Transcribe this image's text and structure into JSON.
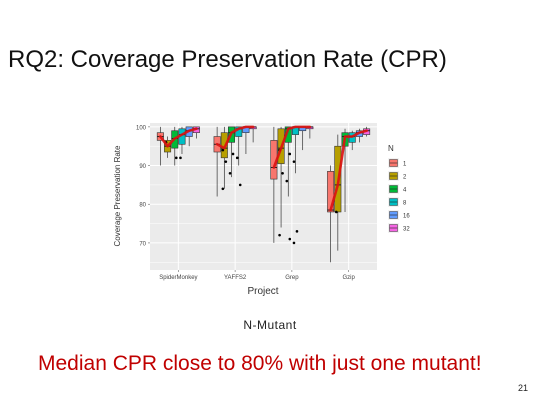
{
  "slide": {
    "title": "RQ2: Coverage Preservation Rate (CPR)",
    "caption": "N-Mutant",
    "note": "Median CPR close to 80% with just one mutant!",
    "page_number": "21"
  },
  "chart_data": {
    "type": "box",
    "title": "",
    "xlabel": "Project",
    "ylabel": "Coverage Preservation Rate",
    "categories": [
      "SpiderMonkey",
      "YAFFS2",
      "Grep",
      "Gzip"
    ],
    "yticks": [
      70,
      80,
      90,
      100
    ],
    "ylim": [
      63,
      101
    ],
    "grid": true,
    "background": "#ebebeb",
    "legend": {
      "title": "N",
      "position": "right"
    },
    "trend_color": "#dd1111",
    "series": [
      {
        "name": "1",
        "color": "#f8766d",
        "boxes": [
          {
            "min": 90,
            "q1": 96.5,
            "median": 97.5,
            "q3": 98.5,
            "max": 100
          },
          {
            "min": 82,
            "q1": 93.5,
            "median": 95.5,
            "q3": 97.5,
            "max": 100
          },
          {
            "min": 70,
            "q1": 86.5,
            "median": 89.5,
            "q3": 96.5,
            "max": 100
          },
          {
            "min": 65,
            "q1": 78,
            "median": 78.5,
            "q3": 88.5,
            "max": 90
          }
        ]
      },
      {
        "name": "2",
        "color": "#b79f00",
        "boxes": [
          {
            "min": 92,
            "q1": 93.5,
            "median": 95,
            "q3": 96.5,
            "max": 97.5
          },
          {
            "min": 84,
            "q1": 92,
            "median": 94.5,
            "q3": 98.5,
            "max": 100
          },
          {
            "min": 74,
            "q1": 90.5,
            "median": 94.5,
            "q3": 99.5,
            "max": 100
          },
          {
            "min": 68,
            "q1": 78,
            "median": 85,
            "q3": 95,
            "max": 98
          }
        ]
      },
      {
        "name": "4",
        "color": "#00ba38",
        "boxes": [
          {
            "min": 90,
            "q1": 94.5,
            "median": 97,
            "q3": 99,
            "max": 100
          },
          {
            "min": 87,
            "q1": 96,
            "median": 98.5,
            "q3": 100,
            "max": 100
          },
          {
            "min": 82,
            "q1": 96,
            "median": 99.5,
            "q3": 100,
            "max": 100
          },
          {
            "min": 78,
            "q1": 95,
            "median": 97.5,
            "q3": 98.5,
            "max": 99.5
          }
        ]
      },
      {
        "name": "8",
        "color": "#00bfc4",
        "boxes": [
          {
            "min": 93,
            "q1": 95.5,
            "median": 98,
            "q3": 99.5,
            "max": 100
          },
          {
            "min": 90,
            "q1": 97.5,
            "median": 99.5,
            "q3": 100,
            "max": 100
          },
          {
            "min": 88,
            "q1": 98,
            "median": 100,
            "q3": 100,
            "max": 100
          },
          {
            "min": 94,
            "q1": 96,
            "median": 97.5,
            "q3": 98.5,
            "max": 99
          }
        ]
      },
      {
        "name": "16",
        "color": "#619cff",
        "boxes": [
          {
            "min": 95,
            "q1": 97.5,
            "median": 99,
            "q3": 100,
            "max": 100
          },
          {
            "min": 93,
            "q1": 98.5,
            "median": 100,
            "q3": 100,
            "max": 100
          },
          {
            "min": 94,
            "q1": 99,
            "median": 100,
            "q3": 100,
            "max": 100
          },
          {
            "min": 96,
            "q1": 97.5,
            "median": 98.5,
            "q3": 99,
            "max": 99.5
          }
        ]
      },
      {
        "name": "32",
        "color": "#f564e3",
        "boxes": [
          {
            "min": 97,
            "q1": 98.5,
            "median": 99.5,
            "q3": 100,
            "max": 100
          },
          {
            "min": 96,
            "q1": 99.5,
            "median": 100,
            "q3": 100,
            "max": 100
          },
          {
            "min": 97,
            "q1": 99.5,
            "median": 100,
            "q3": 100,
            "max": 100
          },
          {
            "min": 97.5,
            "q1": 98,
            "median": 99,
            "q3": 99.5,
            "max": 100
          }
        ]
      }
    ],
    "outliers": [
      [
        96,
        92,
        92
      ],
      [
        94,
        93,
        92,
        91,
        88,
        85,
        84
      ],
      [
        94,
        93,
        91,
        88,
        86,
        73,
        72,
        71,
        70
      ],
      [
        78
      ]
    ]
  }
}
